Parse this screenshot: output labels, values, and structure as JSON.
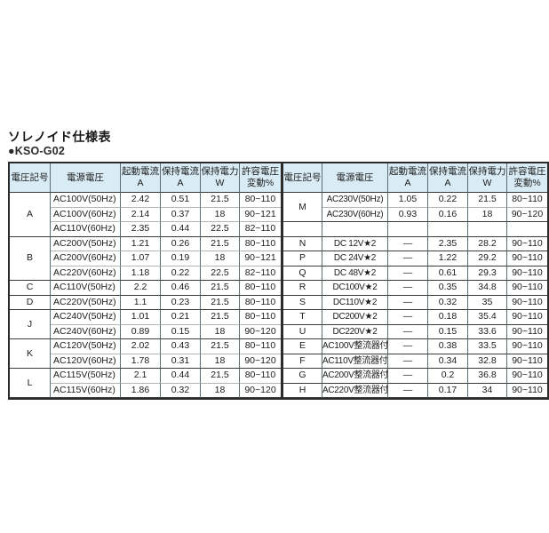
{
  "title": "ソレノイド仕様表",
  "model": "●KSO-G02",
  "colors": {
    "header_bg": "#d9ecf6",
    "border_dark": "#3a3a3a",
    "border_light": "#b5b5b5",
    "text": "#1c1c1c"
  },
  "table": {
    "headers": [
      {
        "line1": "電圧記号",
        "line2": ""
      },
      {
        "line1": "電源電圧",
        "line2": ""
      },
      {
        "line1": "起動電流",
        "line2": "A"
      },
      {
        "line1": "保持電流",
        "line2": "A"
      },
      {
        "line1": "保持電力",
        "line2": "W"
      },
      {
        "line1": "許容電圧",
        "line2": "変動%"
      }
    ],
    "left_groups": [
      {
        "symbol": "A",
        "rows": [
          [
            "AC100V(50Hz)",
            "2.42",
            "0.51",
            "21.5",
            "80~110"
          ],
          [
            "AC100V(60Hz)",
            "2.14",
            "0.37",
            "18",
            "90~121"
          ],
          [
            "AC110V(60Hz)",
            "2.35",
            "0.44",
            "22.5",
            "82~110"
          ]
        ]
      },
      {
        "symbol": "B",
        "rows": [
          [
            "AC200V(50Hz)",
            "1.21",
            "0.26",
            "21.5",
            "80~110"
          ],
          [
            "AC200V(60Hz)",
            "1.07",
            "0.19",
            "18",
            "90~121"
          ],
          [
            "AC220V(60Hz)",
            "1.18",
            "0.22",
            "22.5",
            "82~110"
          ]
        ]
      },
      {
        "symbol": "C",
        "rows": [
          [
            "AC110V(50Hz)",
            "2.2",
            "0.46",
            "21.5",
            "80~110"
          ]
        ]
      },
      {
        "symbol": "D",
        "rows": [
          [
            "AC220V(50Hz)",
            "1.1",
            "0.23",
            "21.5",
            "80~110"
          ]
        ]
      },
      {
        "symbol": "J",
        "rows": [
          [
            "AC240V(50Hz)",
            "1.01",
            "0.21",
            "21.5",
            "80~110"
          ],
          [
            "AC240V(60Hz)",
            "0.89",
            "0.15",
            "18",
            "90~120"
          ]
        ]
      },
      {
        "symbol": "K",
        "rows": [
          [
            "AC120V(50Hz)",
            "2.02",
            "0.43",
            "21.5",
            "80~110"
          ],
          [
            "AC120V(60Hz)",
            "1.78",
            "0.31",
            "18",
            "90~120"
          ]
        ]
      },
      {
        "symbol": "L",
        "rows": [
          [
            "AC115V(50Hz)",
            "2.1",
            "0.44",
            "21.5",
            "80~110"
          ],
          [
            "AC115V(60Hz)",
            "1.86",
            "0.32",
            "18",
            "90~120"
          ]
        ]
      }
    ],
    "right_groups": [
      {
        "symbol": "M",
        "rows": [
          [
            "AC230V(50Hz)",
            "1.05",
            "0.22",
            "21.5",
            "80~110"
          ],
          [
            "AC230V(60Hz)",
            "0.93",
            "0.16",
            "18",
            "90~120"
          ]
        ]
      },
      {
        "symbol": "",
        "rows": [
          [
            "",
            "",
            "",
            "",
            ""
          ]
        ]
      },
      {
        "symbol": "N",
        "rows": [
          [
            "DC 12V★2",
            "—",
            "2.35",
            "28.2",
            "90~110"
          ]
        ]
      },
      {
        "symbol": "P",
        "rows": [
          [
            "DC 24V★2",
            "—",
            "1.22",
            "29.2",
            "90~110"
          ]
        ]
      },
      {
        "symbol": "Q",
        "rows": [
          [
            "DC 48V★2",
            "—",
            "0.61",
            "29.3",
            "90~110"
          ]
        ]
      },
      {
        "symbol": "R",
        "rows": [
          [
            "DC100V★2",
            "—",
            "0.35",
            "34.8",
            "90~110"
          ]
        ]
      },
      {
        "symbol": "S",
        "rows": [
          [
            "DC110V★2",
            "—",
            "0.32",
            "35",
            "90~110"
          ]
        ]
      },
      {
        "symbol": "T",
        "rows": [
          [
            "DC200V★2",
            "—",
            "0.18",
            "35.4",
            "90~110"
          ]
        ]
      },
      {
        "symbol": "U",
        "rows": [
          [
            "DC220V★2",
            "—",
            "0.15",
            "33.6",
            "90~110"
          ]
        ]
      },
      {
        "symbol": "E",
        "rows": [
          [
            "AC100V整流器付",
            "—",
            "0.38",
            "33.5",
            "90~110"
          ]
        ]
      },
      {
        "symbol": "F",
        "rows": [
          [
            "AC110V整流器付",
            "—",
            "0.34",
            "32.8",
            "90~110"
          ]
        ]
      },
      {
        "symbol": "G",
        "rows": [
          [
            "AC200V整流器付",
            "—",
            "0.2",
            "36.8",
            "90~110"
          ]
        ]
      },
      {
        "symbol": "H",
        "rows": [
          [
            "AC220V整流器付",
            "—",
            "0.17",
            "34",
            "90~110"
          ]
        ]
      }
    ]
  }
}
